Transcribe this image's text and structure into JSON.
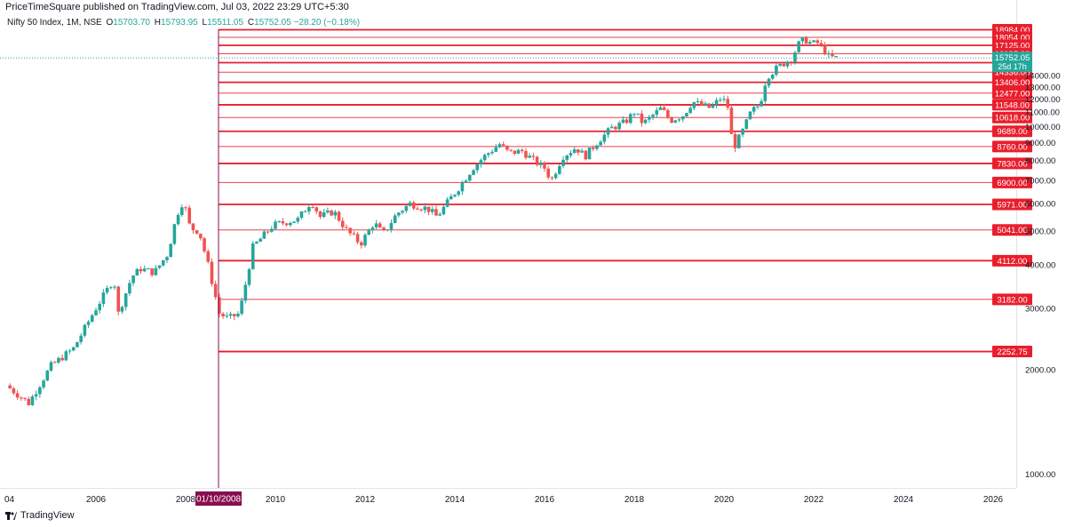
{
  "header": {
    "published": "PriceTimeSquare published on TradingView.com, Jul 03, 2022 23:29 UTC+5:30"
  },
  "legend": {
    "symbol": "Nifty 50 Index, 1M, NSE",
    "o_label": "O",
    "o_value": "15703.70",
    "h_label": "H",
    "h_value": "15793.95",
    "l_label": "L",
    "l_value": "15511.05",
    "c_label": "C",
    "c_value": "15752.05",
    "change": "−28.20 (−0.18%)"
  },
  "footer": {
    "brand": "TradingView"
  },
  "colors": {
    "up": "#26a69a",
    "down": "#ef5350",
    "level_line": "#e91e2c",
    "marker": "#880e4f",
    "price_badge": "#26a69a"
  },
  "chart_data": {
    "type": "candlestick",
    "timeframe": "1M",
    "x_ticks": [
      "04",
      "2006",
      "2008",
      "2010",
      "2012",
      "2014",
      "2016",
      "2018",
      "2020",
      "2022",
      "2024",
      "2026"
    ],
    "y_ticks": [
      1000,
      2000,
      3000,
      4000,
      5000,
      6000,
      7000,
      8000,
      9000,
      10000,
      11000,
      12000,
      13000,
      14000
    ],
    "y_scale": "log",
    "levels": [
      {
        "value": "18984.00",
        "bold": true
      },
      {
        "value": "18054.00",
        "bold": false
      },
      {
        "value": "17125.00",
        "bold": true
      },
      {
        "value": "16195.00",
        "bold": false
      },
      {
        "value": "15266.00",
        "bold": true
      },
      {
        "value": "14336.00",
        "bold": false
      },
      {
        "value": "13406.00",
        "bold": true
      },
      {
        "value": "12477.00",
        "bold": false
      },
      {
        "value": "11548.00",
        "bold": true
      },
      {
        "value": "10618.00",
        "bold": false
      },
      {
        "value": "9689.00",
        "bold": true
      },
      {
        "value": "8760.00",
        "bold": false
      },
      {
        "value": "7830.00",
        "bold": true
      },
      {
        "value": "6900.00",
        "bold": false
      },
      {
        "value": "5971.00",
        "bold": true
      },
      {
        "value": "5041.00",
        "bold": false
      },
      {
        "value": "4112.00",
        "bold": true
      },
      {
        "value": "3182.00",
        "bold": false
      },
      {
        "value": "2252.75",
        "bold": true
      }
    ],
    "current_price": {
      "value": "15752.05",
      "countdown": "25d 17h"
    },
    "marker_date": "01/10/2008",
    "close_path": [
      [
        2004.0,
        1800
      ],
      [
        2004.5,
        1600
      ],
      [
        2005.0,
        2050
      ],
      [
        2005.5,
        2300
      ],
      [
        2006.0,
        3000
      ],
      [
        2006.4,
        3650
      ],
      [
        2006.5,
        2900
      ],
      [
        2006.8,
        3700
      ],
      [
        2007.0,
        3900
      ],
      [
        2007.3,
        3800
      ],
      [
        2007.6,
        4300
      ],
      [
        2007.8,
        5550
      ],
      [
        2007.95,
        6140
      ],
      [
        2008.1,
        5100
      ],
      [
        2008.3,
        5000
      ],
      [
        2008.5,
        4000
      ],
      [
        2008.75,
        2900
      ],
      [
        2008.95,
        2800
      ],
      [
        2009.2,
        2900
      ],
      [
        2009.35,
        3600
      ],
      [
        2009.5,
        4500
      ],
      [
        2009.7,
        4800
      ],
      [
        2009.95,
        5200
      ],
      [
        2010.2,
        5300
      ],
      [
        2010.5,
        5400
      ],
      [
        2010.8,
        6100
      ],
      [
        2011.0,
        5500
      ],
      [
        2011.3,
        5700
      ],
      [
        2011.6,
        5000
      ],
      [
        2011.9,
        4600
      ],
      [
        2012.2,
        5300
      ],
      [
        2012.4,
        4900
      ],
      [
        2012.7,
        5600
      ],
      [
        2013.0,
        6000
      ],
      [
        2013.4,
        5800
      ],
      [
        2013.6,
        5500
      ],
      [
        2013.9,
        6200
      ],
      [
        2014.1,
        6700
      ],
      [
        2014.4,
        7600
      ],
      [
        2014.7,
        8300
      ],
      [
        2015.0,
        8900
      ],
      [
        2015.2,
        8400
      ],
      [
        2015.5,
        8500
      ],
      [
        2015.8,
        7900
      ],
      [
        2016.0,
        7600
      ],
      [
        2016.15,
        7000
      ],
      [
        2016.4,
        8200
      ],
      [
        2016.7,
        8700
      ],
      [
        2016.9,
        8200
      ],
      [
        2017.2,
        9100
      ],
      [
        2017.5,
        9900
      ],
      [
        2017.8,
        10300
      ],
      [
        2018.0,
        11000
      ],
      [
        2018.2,
        10200
      ],
      [
        2018.6,
        11300
      ],
      [
        2018.8,
        10400
      ],
      [
        2019.1,
        10800
      ],
      [
        2019.3,
        11800
      ],
      [
        2019.5,
        11500
      ],
      [
        2019.7,
        11300
      ],
      [
        2019.95,
        12150
      ],
      [
        2020.1,
        11300
      ],
      [
        2020.2,
        8600
      ],
      [
        2020.4,
        9600
      ],
      [
        2020.6,
        11000
      ],
      [
        2020.8,
        11600
      ],
      [
        2020.95,
        13900
      ],
      [
        2021.2,
        14800
      ],
      [
        2021.5,
        15700
      ],
      [
        2021.7,
        17600
      ],
      [
        2021.85,
        17700
      ],
      [
        2021.95,
        17300
      ],
      [
        2022.1,
        17400
      ],
      [
        2022.2,
        16800
      ],
      [
        2022.35,
        15800
      ],
      [
        2022.5,
        15752
      ]
    ]
  }
}
